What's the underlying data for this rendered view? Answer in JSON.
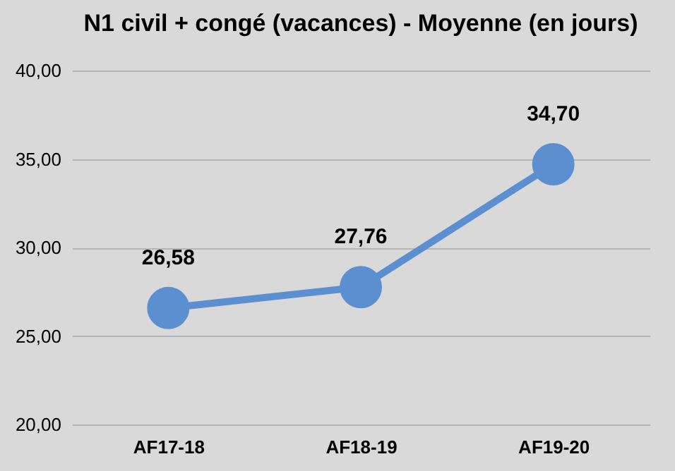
{
  "chart_data": {
    "type": "line",
    "title": "N1 civil + congé (vacances) -\nMoyenne (en jours)",
    "categories": [
      "AF17-18",
      "AF18-19",
      "AF19-20"
    ],
    "series": [
      {
        "color": "#5b8fd0",
        "values": [
          26.58,
          27.76,
          34.7
        ],
        "value_labels": [
          "26,58",
          "27,76",
          "34,70"
        ]
      }
    ],
    "ylim": [
      20,
      40
    ],
    "yticks": [
      {
        "value": 20,
        "label": "20,00"
      },
      {
        "value": 25,
        "label": "25,00"
      },
      {
        "value": 30,
        "label": "30,00"
      },
      {
        "value": 35,
        "label": "35,00"
      },
      {
        "value": 40,
        "label": "40,00"
      }
    ],
    "grid": "y",
    "marker": "circle",
    "line_style": "solid",
    "legend": false
  }
}
